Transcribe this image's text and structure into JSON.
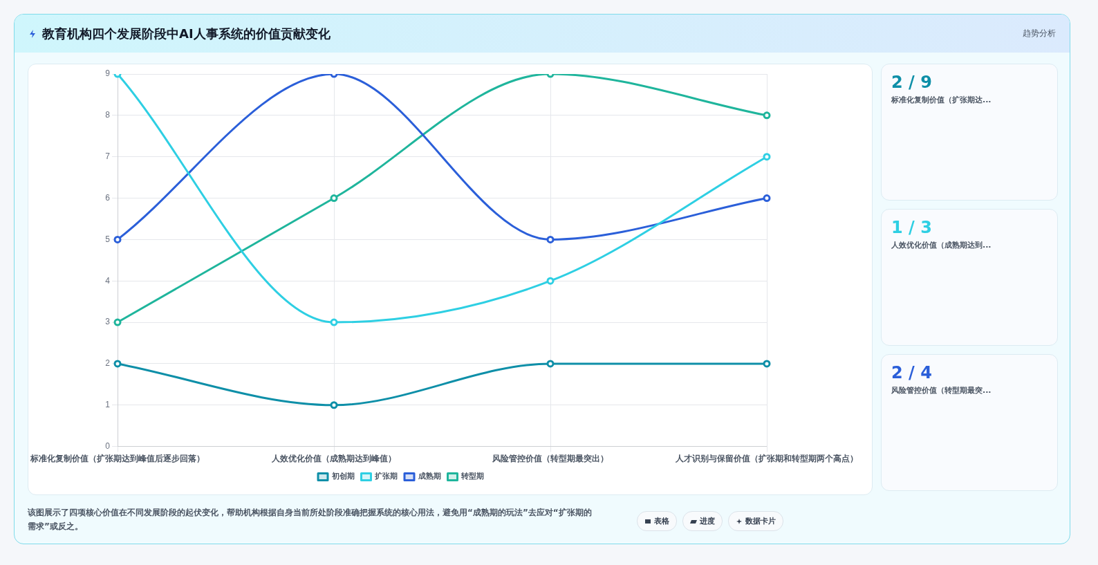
{
  "chart_data": {
    "type": "line",
    "title": "教育机构四个发展阶段中AI人事系统的价值贡献变化",
    "categories": [
      "标准化复制价值（扩张期达到峰值后逐步回落）",
      "人效优化价值（成熟期达到峰值）",
      "风险管控价值（转型期最突出）",
      "人才识别与保留价值（扩张期和转型期两个高点）"
    ],
    "series": [
      {
        "name": "初创期",
        "color": "#0e8fa8",
        "values": [
          2,
          1,
          2,
          2
        ]
      },
      {
        "name": "扩张期",
        "color": "#2ecfe3",
        "values": [
          9,
          3,
          4,
          7
        ]
      },
      {
        "name": "成熟期",
        "color": "#2b5fd9",
        "values": [
          5,
          9,
          5,
          6
        ]
      },
      {
        "name": "转型期",
        "color": "#1fb59c",
        "values": [
          3,
          6,
          9,
          8
        ]
      }
    ],
    "ylim": [
      0,
      9
    ],
    "yticks": [
      0,
      1,
      2,
      3,
      4,
      5,
      6,
      7,
      8,
      9
    ],
    "grid": true,
    "legend": "bottom",
    "marker": "circle",
    "line_style": "solid",
    "annotations": [
      "趋势分析",
      "2 / 9",
      "标准化复制价值（扩张期达...",
      "1 / 3",
      "人效优化价值（成熟期达到...",
      "2 / 4",
      "风险管控价值（转型期最突...",
      "该图展示了四项核心价值在不同发展阶段的起伏变化，帮助机构根据自身当前所处阶段准确把握系统的核心用法，避免用“成熟期的玩法”去应对“扩张期的需求”或反之。",
      "表格",
      "进度",
      "数据卡片"
    ]
  }
}
